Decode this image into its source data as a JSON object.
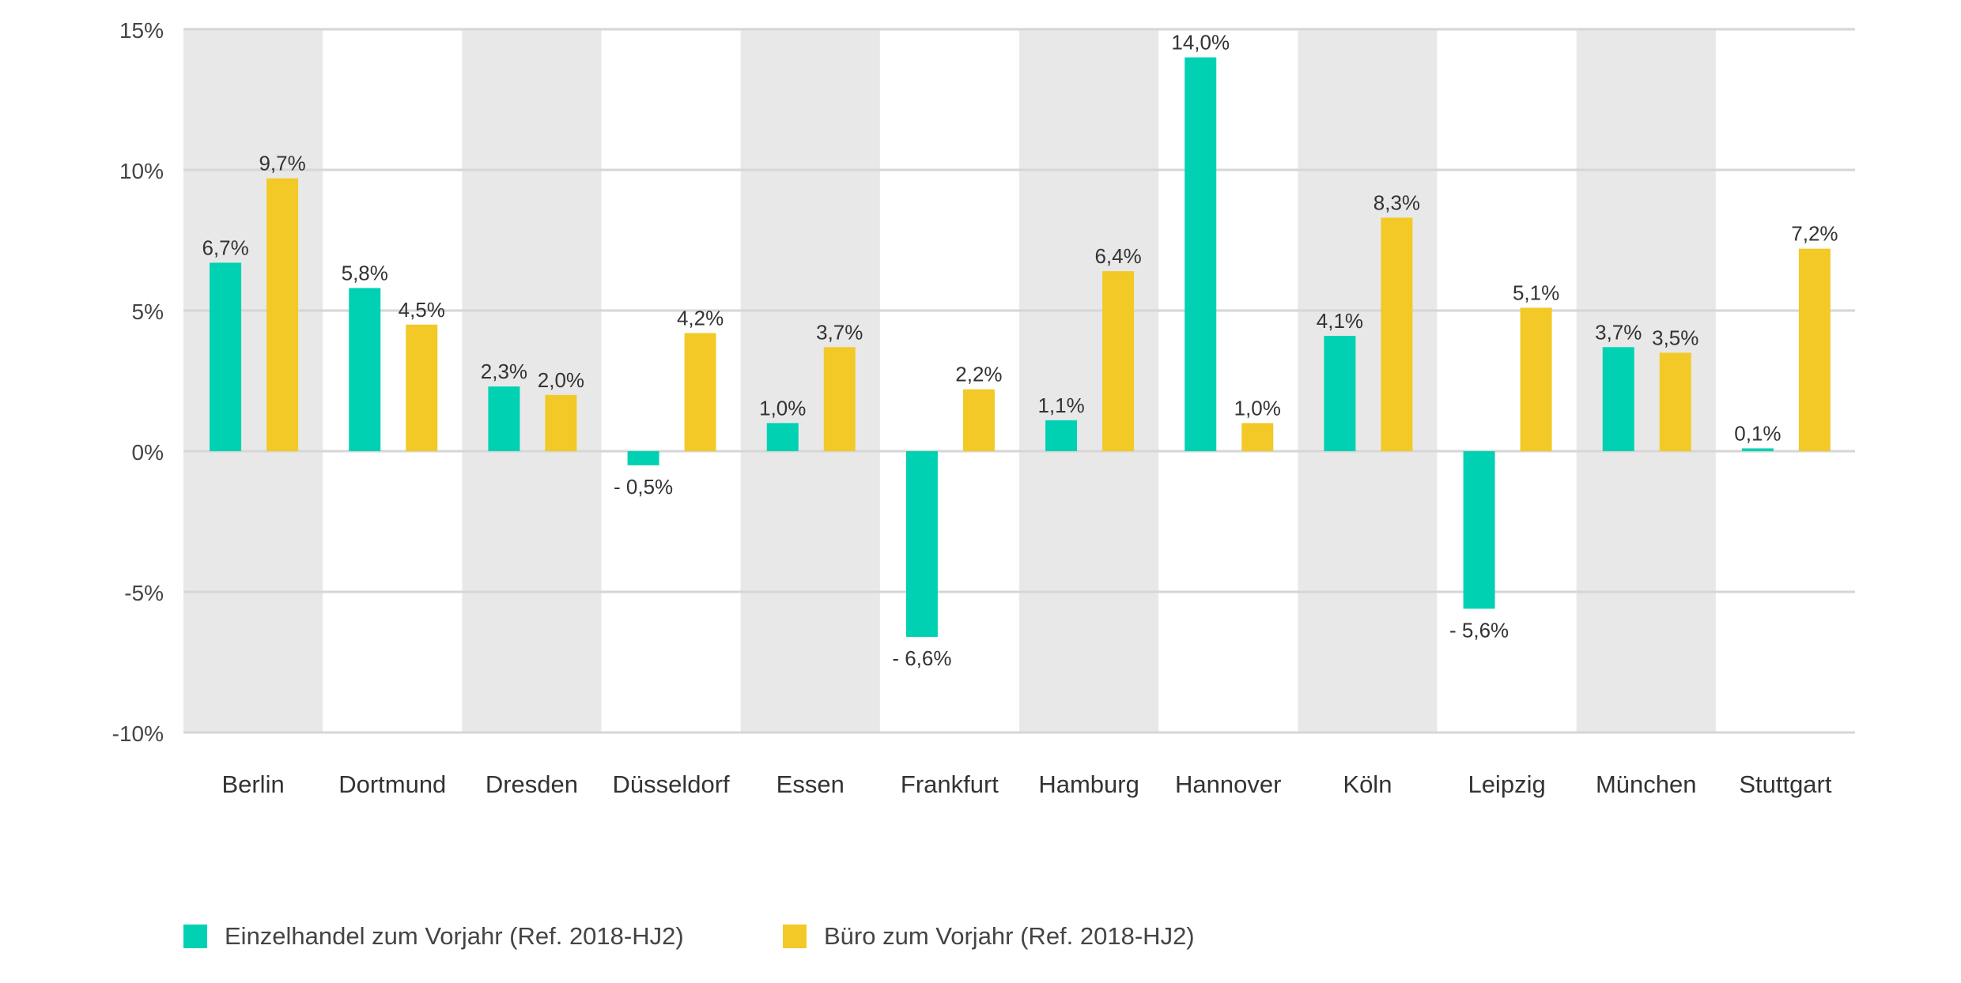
{
  "chart_data": {
    "type": "bar",
    "title": "",
    "xlabel": "",
    "ylabel": "",
    "ylim": [
      -10,
      15
    ],
    "yticks": [
      15,
      10,
      5,
      0,
      -5,
      -10
    ],
    "ytick_labels": [
      "15%",
      "10%",
      "5%",
      "0%",
      "-5%",
      "-10%"
    ],
    "grid": true,
    "legend_position": "bottom-left",
    "categories": [
      "Berlin",
      "Dortmund",
      "Dresden",
      "Düsseldorf",
      "Essen",
      "Frankfurt",
      "Hamburg",
      "Hannover",
      "Köln",
      "Leipzig",
      "München",
      "Stuttgart"
    ],
    "series": [
      {
        "name": "Einzelhandel zum Vorjahr (Ref. 2018-HJ2)",
        "color": "#00d1b2",
        "values": [
          6.7,
          5.8,
          2.3,
          -0.5,
          1.0,
          -6.6,
          1.1,
          14.0,
          4.1,
          -5.6,
          3.7,
          0.1
        ],
        "labels": [
          "6,7%",
          "5,8%",
          "2,3%",
          "- 0,5%",
          "1,0%",
          "- 6,6%",
          "1,1%",
          "14,0%",
          "4,1%",
          "- 5,6%",
          "3,7%",
          "0,1%"
        ]
      },
      {
        "name": "Büro zum Vorjahr (Ref. 2018-HJ2)",
        "color": "#f2c926",
        "values": [
          9.7,
          4.5,
          2.0,
          4.2,
          3.7,
          2.2,
          6.4,
          1.0,
          8.3,
          5.1,
          3.5,
          7.2
        ],
        "labels": [
          "9,7%",
          "4,5%",
          "2,0%",
          "4,2%",
          "3,7%",
          "2,2%",
          "6,4%",
          "1,0%",
          "8,3%",
          "5,1%",
          "3,5%",
          "7,2%"
        ]
      }
    ],
    "band_color": "#e8e8e8",
    "grid_color": "#d6d6d6"
  }
}
